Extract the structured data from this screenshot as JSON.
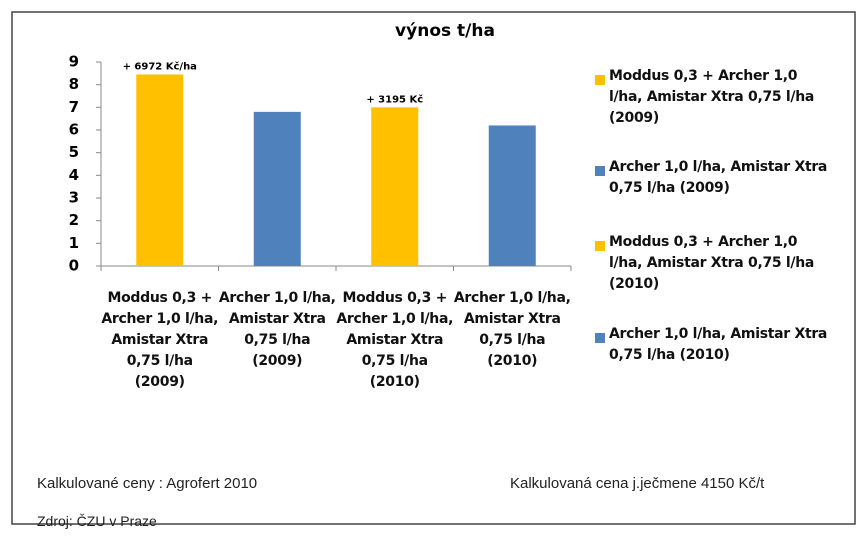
{
  "chart_data": {
    "type": "bar",
    "title": "výnos t/ha",
    "categories": [
      "Moddus 0,3 + Archer 1,0 l/ha, Amistar Xtra 0,75 l/ha (2009)",
      "Archer 1,0 l/ha, Amistar Xtra 0,75 l/ha (2009)",
      "Moddus 0,3 + Archer 1,0 l/ha, Amistar Xtra 0,75 l/ha (2010)",
      "Archer 1,0 l/ha, Amistar Xtra 0,75 l/ha (2010)"
    ],
    "values": [
      8.45,
      6.8,
      7.0,
      6.2
    ],
    "colors": [
      "#ffc000",
      "#4f81bd",
      "#ffc000",
      "#4f81bd"
    ],
    "annotations": [
      {
        "index": 0,
        "text": "+ 6972 Kč/ha"
      },
      {
        "index": 2,
        "text": "+ 3195 Kč"
      }
    ],
    "ylim": [
      0,
      9
    ],
    "yticks": [
      0,
      1,
      2,
      3,
      4,
      5,
      6,
      7,
      8,
      9
    ],
    "grid": false,
    "legend": "right"
  },
  "footer": {
    "left": "Kalkulované ceny : Agrofert 2010",
    "right": "Kalkulovaná cena j.ječmene 4150 Kč/t",
    "source": "Zdroj: ČZU v Praze"
  }
}
